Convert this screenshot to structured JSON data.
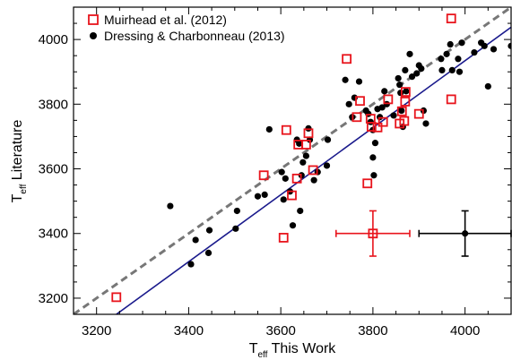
{
  "chart_data": {
    "type": "scatter",
    "title": "",
    "xlabel": {
      "main": "T",
      "sub": "eff",
      "rest": " This Work"
    },
    "ylabel": {
      "main": "T",
      "sub": "eff",
      "rest": " Literature"
    },
    "xlim": [
      3150,
      4100
    ],
    "ylim": [
      3150,
      4100
    ],
    "x_ticks": [
      3200,
      3400,
      3600,
      3800,
      4000
    ],
    "y_ticks": [
      3200,
      3400,
      3600,
      3800,
      4000
    ],
    "grid": false,
    "legend_placement": "top-left",
    "series": [
      {
        "name": "Muirhead et al. (2012)",
        "marker": "open-square",
        "color": "#e8141c",
        "points": [
          [
            3243,
            3203
          ],
          [
            3563,
            3580
          ],
          [
            3606,
            3387
          ],
          [
            3612,
            3720
          ],
          [
            3624,
            3518
          ],
          [
            3635,
            3570
          ],
          [
            3638,
            3675
          ],
          [
            3655,
            3675
          ],
          [
            3660,
            3710
          ],
          [
            3670,
            3596
          ],
          [
            3743,
            3940
          ],
          [
            3765,
            3760
          ],
          [
            3772,
            3810
          ],
          [
            3788,
            3555
          ],
          [
            3795,
            3755
          ],
          [
            3797,
            3730
          ],
          [
            3810,
            3728
          ],
          [
            3822,
            3745
          ],
          [
            3833,
            3815
          ],
          [
            3858,
            3740
          ],
          [
            3863,
            3778
          ],
          [
            3868,
            3748
          ],
          [
            3870,
            3808
          ],
          [
            3871,
            3838
          ],
          [
            3900,
            3770
          ],
          [
            3970,
            4065
          ],
          [
            3970,
            3815
          ]
        ]
      },
      {
        "name": "Dressing & Charbonneau (2013)",
        "marker": "filled-circle",
        "color": "#000000",
        "points": [
          [
            3360,
            3485
          ],
          [
            3405,
            3305
          ],
          [
            3415,
            3380
          ],
          [
            3443,
            3340
          ],
          [
            3445,
            3410
          ],
          [
            3502,
            3415
          ],
          [
            3505,
            3470
          ],
          [
            3550,
            3515
          ],
          [
            3565,
            3520
          ],
          [
            3575,
            3722
          ],
          [
            3602,
            3590
          ],
          [
            3606,
            3505
          ],
          [
            3610,
            3570
          ],
          [
            3620,
            3530
          ],
          [
            3626,
            3425
          ],
          [
            3635,
            3690
          ],
          [
            3640,
            3678
          ],
          [
            3642,
            3470
          ],
          [
            3645,
            3580
          ],
          [
            3648,
            3620
          ],
          [
            3655,
            3640
          ],
          [
            3660,
            3725
          ],
          [
            3663,
            3690
          ],
          [
            3672,
            3565
          ],
          [
            3680,
            3590
          ],
          [
            3700,
            3610
          ],
          [
            3702,
            3690
          ],
          [
            3740,
            3875
          ],
          [
            3748,
            3800
          ],
          [
            3755,
            3760
          ],
          [
            3760,
            3820
          ],
          [
            3770,
            3870
          ],
          [
            3785,
            3780
          ],
          [
            3790,
            3770
          ],
          [
            3795,
            3745
          ],
          [
            3800,
            3720
          ],
          [
            3800,
            3635
          ],
          [
            3802,
            3580
          ],
          [
            3805,
            3680
          ],
          [
            3810,
            3785
          ],
          [
            3815,
            3760
          ],
          [
            3820,
            3790
          ],
          [
            3825,
            3840
          ],
          [
            3830,
            3800
          ],
          [
            3845,
            3765
          ],
          [
            3855,
            3880
          ],
          [
            3858,
            3860
          ],
          [
            3860,
            3835
          ],
          [
            3862,
            3780
          ],
          [
            3865,
            3730
          ],
          [
            3870,
            3905
          ],
          [
            3872,
            3840
          ],
          [
            3880,
            3955
          ],
          [
            3885,
            3885
          ],
          [
            3895,
            3895
          ],
          [
            3900,
            3920
          ],
          [
            3905,
            3910
          ],
          [
            3910,
            3780
          ],
          [
            3915,
            3740
          ],
          [
            3948,
            3940
          ],
          [
            3950,
            3905
          ],
          [
            3960,
            3955
          ],
          [
            3968,
            3985
          ],
          [
            3972,
            3905
          ],
          [
            3985,
            3940
          ],
          [
            3988,
            3900
          ],
          [
            3993,
            3990
          ],
          [
            4020,
            3960
          ],
          [
            4035,
            3990
          ],
          [
            4042,
            3980
          ],
          [
            4050,
            3855
          ],
          [
            4062,
            3970
          ],
          [
            4100,
            3980
          ]
        ]
      }
    ],
    "error_bars": [
      {
        "series": "Muirhead et al. (2012)",
        "x": 3800,
        "y": 3400,
        "xerr": 80,
        "yerr": 70,
        "color": "#e8141c"
      },
      {
        "series": "Dressing & Charbonneau (2013)",
        "x": 4000,
        "y": 3400,
        "xerr": 100,
        "yerr": 70,
        "color": "#000000"
      }
    ],
    "lines": [
      {
        "style": "dashed",
        "color": "#777777",
        "from": [
          3150,
          3150
        ],
        "to": [
          4100,
          4100
        ]
      },
      {
        "style": "solid",
        "color": "#1a1a8c",
        "from": [
          3243,
          3150
        ],
        "to": [
          4100,
          4038
        ]
      }
    ]
  }
}
